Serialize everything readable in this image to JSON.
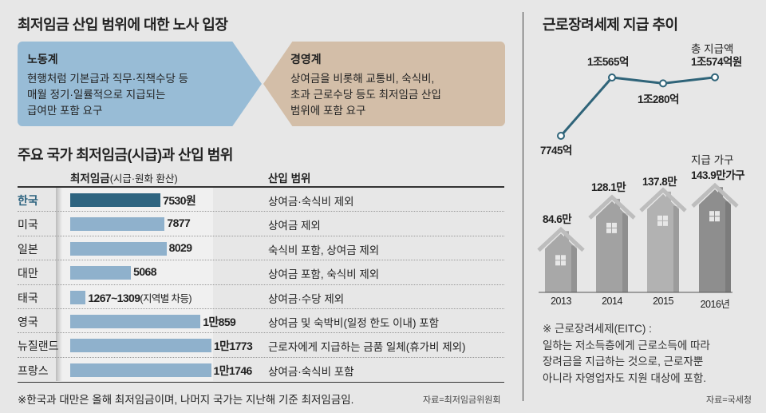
{
  "left": {
    "title": "최저임금 산입 범위에 대한 노사 입장",
    "labor": {
      "heading": "노동계",
      "text": [
        "현행처럼 기본급과 직무·직책수당 등",
        "매월 정기·일률적으로 지급되는",
        "급여만 포함 요구"
      ]
    },
    "management": {
      "heading": "경영계",
      "text": [
        "상여금을 비롯해 교통비, 숙식비,",
        "초과 근로수당 등도 최저임금 산입",
        "범위에 포함 요구"
      ]
    },
    "table_title": "주요 국가 최저임금(시급)과 산입 범위",
    "col_wage": "최저임금",
    "col_wage_sub": "(시급·원화 환산)",
    "col_scope": "산입 범위",
    "rows": [
      {
        "country": "한국",
        "value": 7530,
        "label": "7530원",
        "scope": "상여금·숙식비 제외",
        "highlight": true
      },
      {
        "country": "미국",
        "value": 7877,
        "label": "7877",
        "scope": "상여금 제외"
      },
      {
        "country": "일본",
        "value": 8029,
        "label": "8029",
        "scope": "숙식비 포함, 상여금 제외"
      },
      {
        "country": "대만",
        "value": 5068,
        "label": "5068",
        "scope": "상여금 포함, 숙식비 제외"
      },
      {
        "country": "태국",
        "value": 1288,
        "label": "1267~1309",
        "label_note": "(지역별 차등)",
        "scope": "상여금·수당 제외"
      },
      {
        "country": "영국",
        "value": 10859,
        "label": "1만859",
        "scope": "상여금 및 숙박비(일정 한도 이내) 포함"
      },
      {
        "country": "뉴질랜드",
        "value": 11773,
        "label": "1만1773",
        "scope": "근로자에게 지급하는 금품 일체(휴가비 제외)"
      },
      {
        "country": "프랑스",
        "value": 11746,
        "label": "1만1746",
        "scope": "상여금·숙식비 포함"
      }
    ],
    "footnote": "※한국과 대만은 올해 최저임금이며, 나머지 국가는 지난해 기준 최저임금임.",
    "source": "자료=최저임금위원회",
    "colors": {
      "highlight_bar": "#2e6480",
      "bar": "#8fb1cc"
    }
  },
  "right": {
    "title": "근로장려세제 지급 추이",
    "amount_caption": "총 지급액",
    "household_caption": "지급 가구",
    "chart_data": {
      "type": "line+bar",
      "categories": [
        "2013",
        "2014",
        "2015",
        "2016년"
      ],
      "series": [
        {
          "name": "총 지급액(억원)",
          "values": [
            7745,
            10565,
            10280,
            10574
          ],
          "labels": [
            "7745억",
            "1조565억",
            "1조280억",
            "1조574억원"
          ]
        },
        {
          "name": "지급 가구(만 가구)",
          "values": [
            84.6,
            128.1,
            137.8,
            143.9
          ],
          "labels": [
            "84.6만",
            "128.1만",
            "137.8만",
            "143.9만가구"
          ]
        }
      ]
    },
    "note": [
      "※ 근로장려세제(EITC) :",
      "일하는 저소득층에게 근로소득에 따라",
      "장려금을 지급하는 것으로, 근로자뿐",
      "아니라 자영업자도 지원 대상에 포함."
    ],
    "source": "자료=국세청",
    "line_color": "#2f6479"
  }
}
